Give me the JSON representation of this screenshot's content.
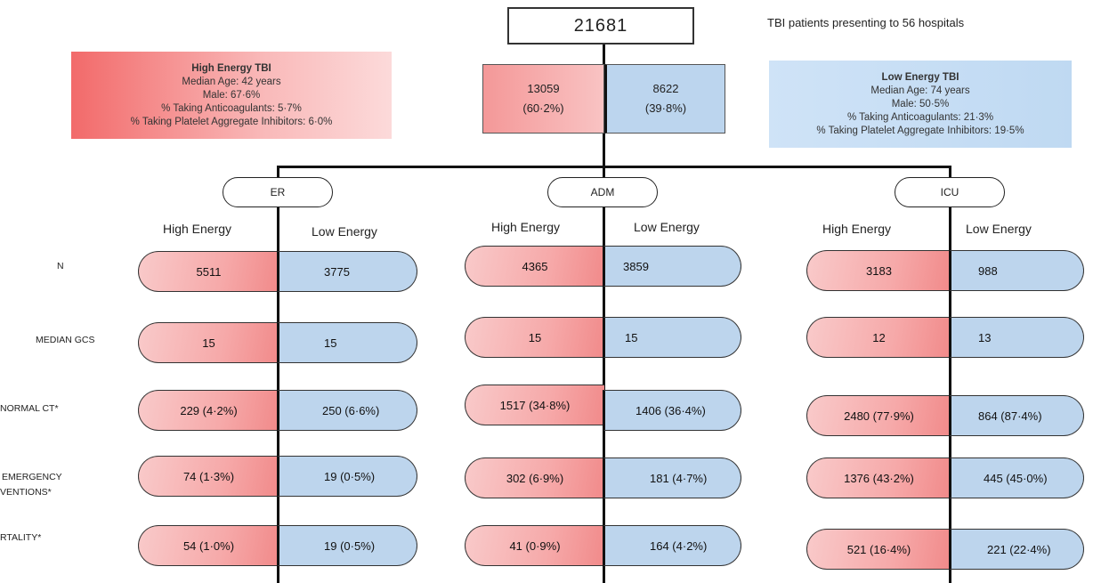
{
  "total": "21681",
  "caption": "TBI patients presenting to 56 hospitals",
  "split": {
    "high_count": "13059",
    "high_pct": "(60·2%)",
    "low_count": "8622",
    "low_pct": "(39·8%)"
  },
  "high_info": {
    "title": "High Energy TBI",
    "lines": [
      "Median Age: 42 years",
      "Male: 67·6%",
      "% Taking Anticoagulants: 5·7%",
      "% Taking Platelet Aggregate Inhibitors: 6·0%"
    ]
  },
  "low_info": {
    "title": "Low Energy TBI",
    "lines": [
      "Median Age: 74 years",
      "Male: 50·5%",
      "% Taking Anticoagulants: 21·3%",
      "% Taking Platelet Aggregate Inhibitors: 19·5%"
    ]
  },
  "column_heads": {
    "high": "High Energy",
    "low": "Low Energy"
  },
  "row_labels": [
    "N",
    "MEDIAN GCS",
    "NORMAL CT*",
    "EMERGENCY",
    "VENTIONS*",
    "RTALITY*"
  ],
  "groups": [
    {
      "name": "ER",
      "rows": [
        [
          "5511",
          "3775"
        ],
        [
          "15",
          "15"
        ],
        [
          "229 (4·2%)",
          "250 (6·6%)"
        ],
        [
          "74 (1·3%)",
          "19 (0·5%)"
        ],
        [
          "54 (1·0%)",
          "19 (0·5%)"
        ]
      ]
    },
    {
      "name": "ADM",
      "rows": [
        [
          "4365",
          "3859"
        ],
        [
          "15",
          "15"
        ],
        [
          "1517 (34·8%)",
          "1406 (36·4%)"
        ],
        [
          "302 (6·9%)",
          "181 (4·7%)"
        ],
        [
          "41 (0·9%)",
          "164 (4·2%)"
        ]
      ]
    },
    {
      "name": "ICU",
      "rows": [
        [
          "3183",
          "988"
        ],
        [
          "12",
          "13"
        ],
        [
          "2480 (77·9%)",
          "864 (87·4%)"
        ],
        [
          "1376 (43·2%)",
          "445 (45·0%)"
        ],
        [
          "521 (16·4%)",
          "221 (22·4%)"
        ]
      ]
    }
  ]
}
